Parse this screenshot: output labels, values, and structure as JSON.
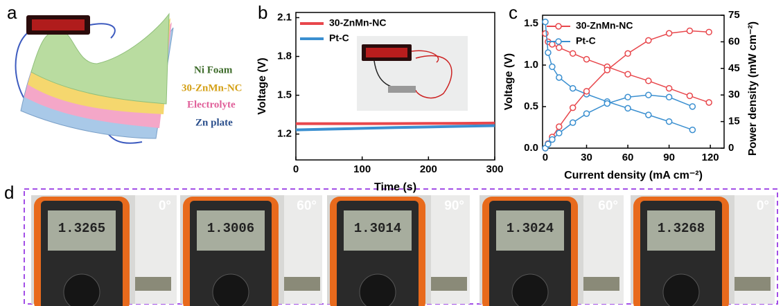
{
  "panel_labels": [
    "a",
    "b",
    "c",
    "d"
  ],
  "schematic": {
    "layers": [
      {
        "label": "Ni Foam",
        "color": "#3d6b2a"
      },
      {
        "label": "30-ZnMn-NC",
        "color": "#d4a017"
      },
      {
        "label": "Electrolyte",
        "color": "#e0609a"
      },
      {
        "label": "Zn plate",
        "color": "#2b4f8c"
      }
    ]
  },
  "chart_data": [
    {
      "type": "line",
      "xlabel": "Time (s)",
      "ylabel": "Voltage (V)",
      "xlim": [
        0,
        300
      ],
      "xticks": [
        0,
        100,
        200,
        300
      ],
      "ylim": [
        1.0,
        2.14
      ],
      "yticks": [
        1.2,
        1.5,
        1.8,
        2.1
      ],
      "series": [
        {
          "name": "30-ZnMn-NC",
          "color": "#e8474c",
          "x": [
            0,
            50,
            100,
            150,
            200,
            250,
            300
          ],
          "values": [
            1.28,
            1.28,
            1.28,
            1.281,
            1.282,
            1.283,
            1.285
          ]
        },
        {
          "name": "Pt-C",
          "color": "#3a8fd0",
          "x": [
            0,
            50,
            100,
            150,
            200,
            250,
            300
          ],
          "values": [
            1.232,
            1.238,
            1.244,
            1.25,
            1.255,
            1.26,
            1.265
          ]
        }
      ]
    },
    {
      "type": "line",
      "markers": true,
      "xlabel": "Current density (mA cm⁻²)",
      "ylabel": "Voltage (V)",
      "y2label": "Power density (mW cm⁻²)",
      "xlim": [
        -2,
        130
      ],
      "xticks": [
        0,
        30,
        60,
        90,
        120
      ],
      "ylim": [
        0,
        1.6
      ],
      "yticks": [
        {
          "value": 0,
          "label": "0.0"
        },
        0.5,
        {
          "value": 1,
          "label": "1.0"
        },
        1.5
      ],
      "y2lim": [
        0,
        75
      ],
      "y2ticks": [
        0,
        15,
        30,
        45,
        60,
        75
      ],
      "series": [
        {
          "name": "30-ZnMn-NC",
          "color": "#e8474c",
          "x": [
            0,
            2,
            5,
            10,
            20,
            30,
            45,
            60,
            75,
            90,
            105,
            119
          ],
          "values": [
            1.38,
            1.28,
            1.25,
            1.21,
            1.14,
            1.07,
            0.98,
            0.89,
            0.81,
            0.72,
            0.63,
            0.55
          ]
        },
        {
          "name": "Pt-C",
          "color": "#3a8fd0",
          "x": [
            0,
            2,
            5,
            10,
            20,
            30,
            45,
            60,
            75,
            90,
            107
          ],
          "values": [
            1.52,
            1.15,
            0.98,
            0.85,
            0.72,
            0.65,
            0.56,
            0.48,
            0.4,
            0.32,
            0.22
          ]
        },
        {
          "name": "30-ZnMn-NC",
          "color": "#e8474c",
          "axis": "y2",
          "x": [
            0,
            2,
            5,
            10,
            20,
            30,
            45,
            60,
            75,
            90,
            105,
            119
          ],
          "values": [
            0,
            2.6,
            6.3,
            12.1,
            22.8,
            32.1,
            44.1,
            53.4,
            60.8,
            64.8,
            66.2,
            65.5
          ]
        },
        {
          "name": "Pt-C",
          "color": "#3a8fd0",
          "axis": "y2",
          "x": [
            0,
            2,
            5,
            10,
            20,
            30,
            45,
            60,
            75,
            90,
            107
          ],
          "values": [
            0,
            2.3,
            4.9,
            8.5,
            14.4,
            19.5,
            25.2,
            28.8,
            30,
            28.8,
            23.5
          ]
        }
      ]
    }
  ],
  "photos": [
    {
      "angle": "0°",
      "reading": "1.3265"
    },
    {
      "angle": "60°",
      "reading": "1.3006"
    },
    {
      "angle": "90°",
      "reading": "1.3014"
    },
    {
      "angle": "60°",
      "reading": "1.3024"
    },
    {
      "angle": "0°",
      "reading": "1.3268"
    }
  ]
}
